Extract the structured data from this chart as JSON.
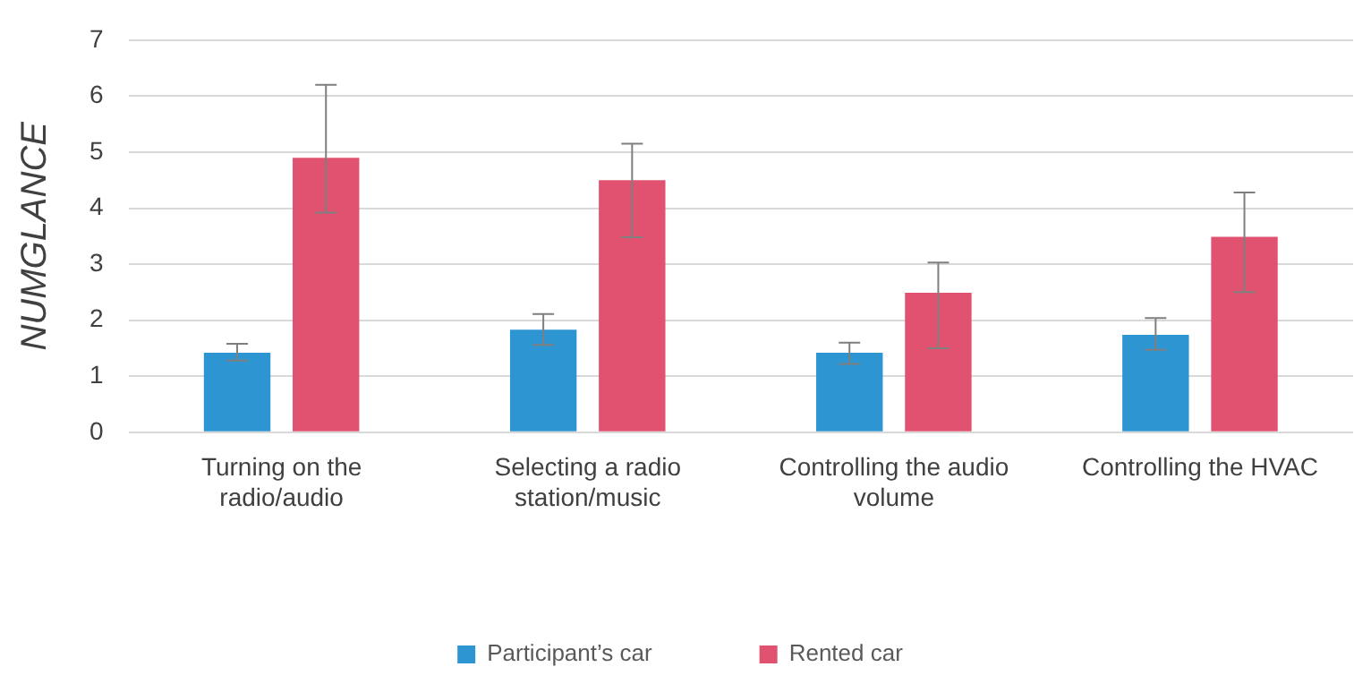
{
  "chart_data": {
    "type": "bar",
    "ylabel": "NUMGLANCE",
    "categories": [
      "Turning on the radio/audio",
      "Selecting a radio station/music",
      "Controlling the audio volume",
      "Controlling the HVAC"
    ],
    "series": [
      {
        "name": "Participant’s car",
        "color": "#2e95d3",
        "values": [
          1.42,
          1.83,
          1.42,
          1.74
        ],
        "errors": [
          [
            1.28,
            1.58
          ],
          [
            1.56,
            2.11
          ],
          [
            1.22,
            1.6
          ],
          [
            1.47,
            2.04
          ]
        ]
      },
      {
        "name": "Rented car",
        "color": "#e05270",
        "values": [
          4.9,
          4.5,
          2.49,
          3.49
        ],
        "errors": [
          [
            3.92,
            6.2
          ],
          [
            3.48,
            5.15
          ],
          [
            1.5,
            3.03
          ],
          [
            2.5,
            4.28
          ]
        ]
      }
    ],
    "ylim": [
      0,
      7
    ],
    "yticks": [
      0,
      1,
      2,
      3,
      4,
      5,
      6,
      7
    ],
    "grid": "y",
    "legend": "bottom"
  }
}
